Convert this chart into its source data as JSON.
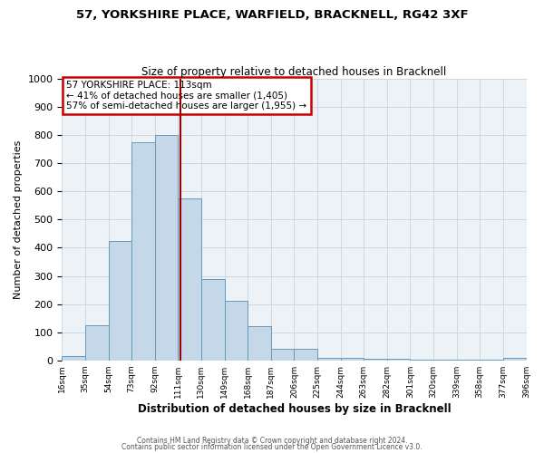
{
  "title_line1": "57, YORKSHIRE PLACE, WARFIELD, BRACKNELL, RG42 3XF",
  "title_line2": "Size of property relative to detached houses in Bracknell",
  "xlabel": "Distribution of detached houses by size in Bracknell",
  "ylabel": "Number of detached properties",
  "bin_edges": [
    16,
    35,
    54,
    73,
    92,
    111,
    130,
    149,
    168,
    187,
    206,
    225,
    244,
    263,
    282,
    301,
    320,
    339,
    358,
    377,
    396
  ],
  "bar_heights": [
    15,
    125,
    425,
    775,
    800,
    575,
    290,
    210,
    120,
    40,
    40,
    10,
    10,
    5,
    5,
    2,
    2,
    2,
    2,
    8
  ],
  "bar_color": "#c5d8ea",
  "bar_edge_color": "#6699bb",
  "bar_edge_width": 0.7,
  "vline_x": 113,
  "vline_color": "#990000",
  "ylim": [
    0,
    1000
  ],
  "yticks": [
    0,
    100,
    200,
    300,
    400,
    500,
    600,
    700,
    800,
    900,
    1000
  ],
  "xtick_labels": [
    "16sqm",
    "35sqm",
    "54sqm",
    "73sqm",
    "92sqm",
    "111sqm",
    "130sqm",
    "149sqm",
    "168sqm",
    "187sqm",
    "206sqm",
    "225sqm",
    "244sqm",
    "263sqm",
    "282sqm",
    "301sqm",
    "320sqm",
    "339sqm",
    "358sqm",
    "377sqm",
    "396sqm"
  ],
  "annotation_title": "57 YORKSHIRE PLACE: 113sqm",
  "annotation_line1": "← 41% of detached houses are smaller (1,405)",
  "annotation_line2": "57% of semi-detached houses are larger (1,955) →",
  "annotation_box_color": "#ffffff",
  "annotation_box_edge": "#cc0000",
  "grid_color": "#ccd8e5",
  "bg_color": "#edf2f7",
  "footer_line1": "Contains HM Land Registry data © Crown copyright and database right 2024.",
  "footer_line2": "Contains public sector information licensed under the Open Government Licence v3.0."
}
